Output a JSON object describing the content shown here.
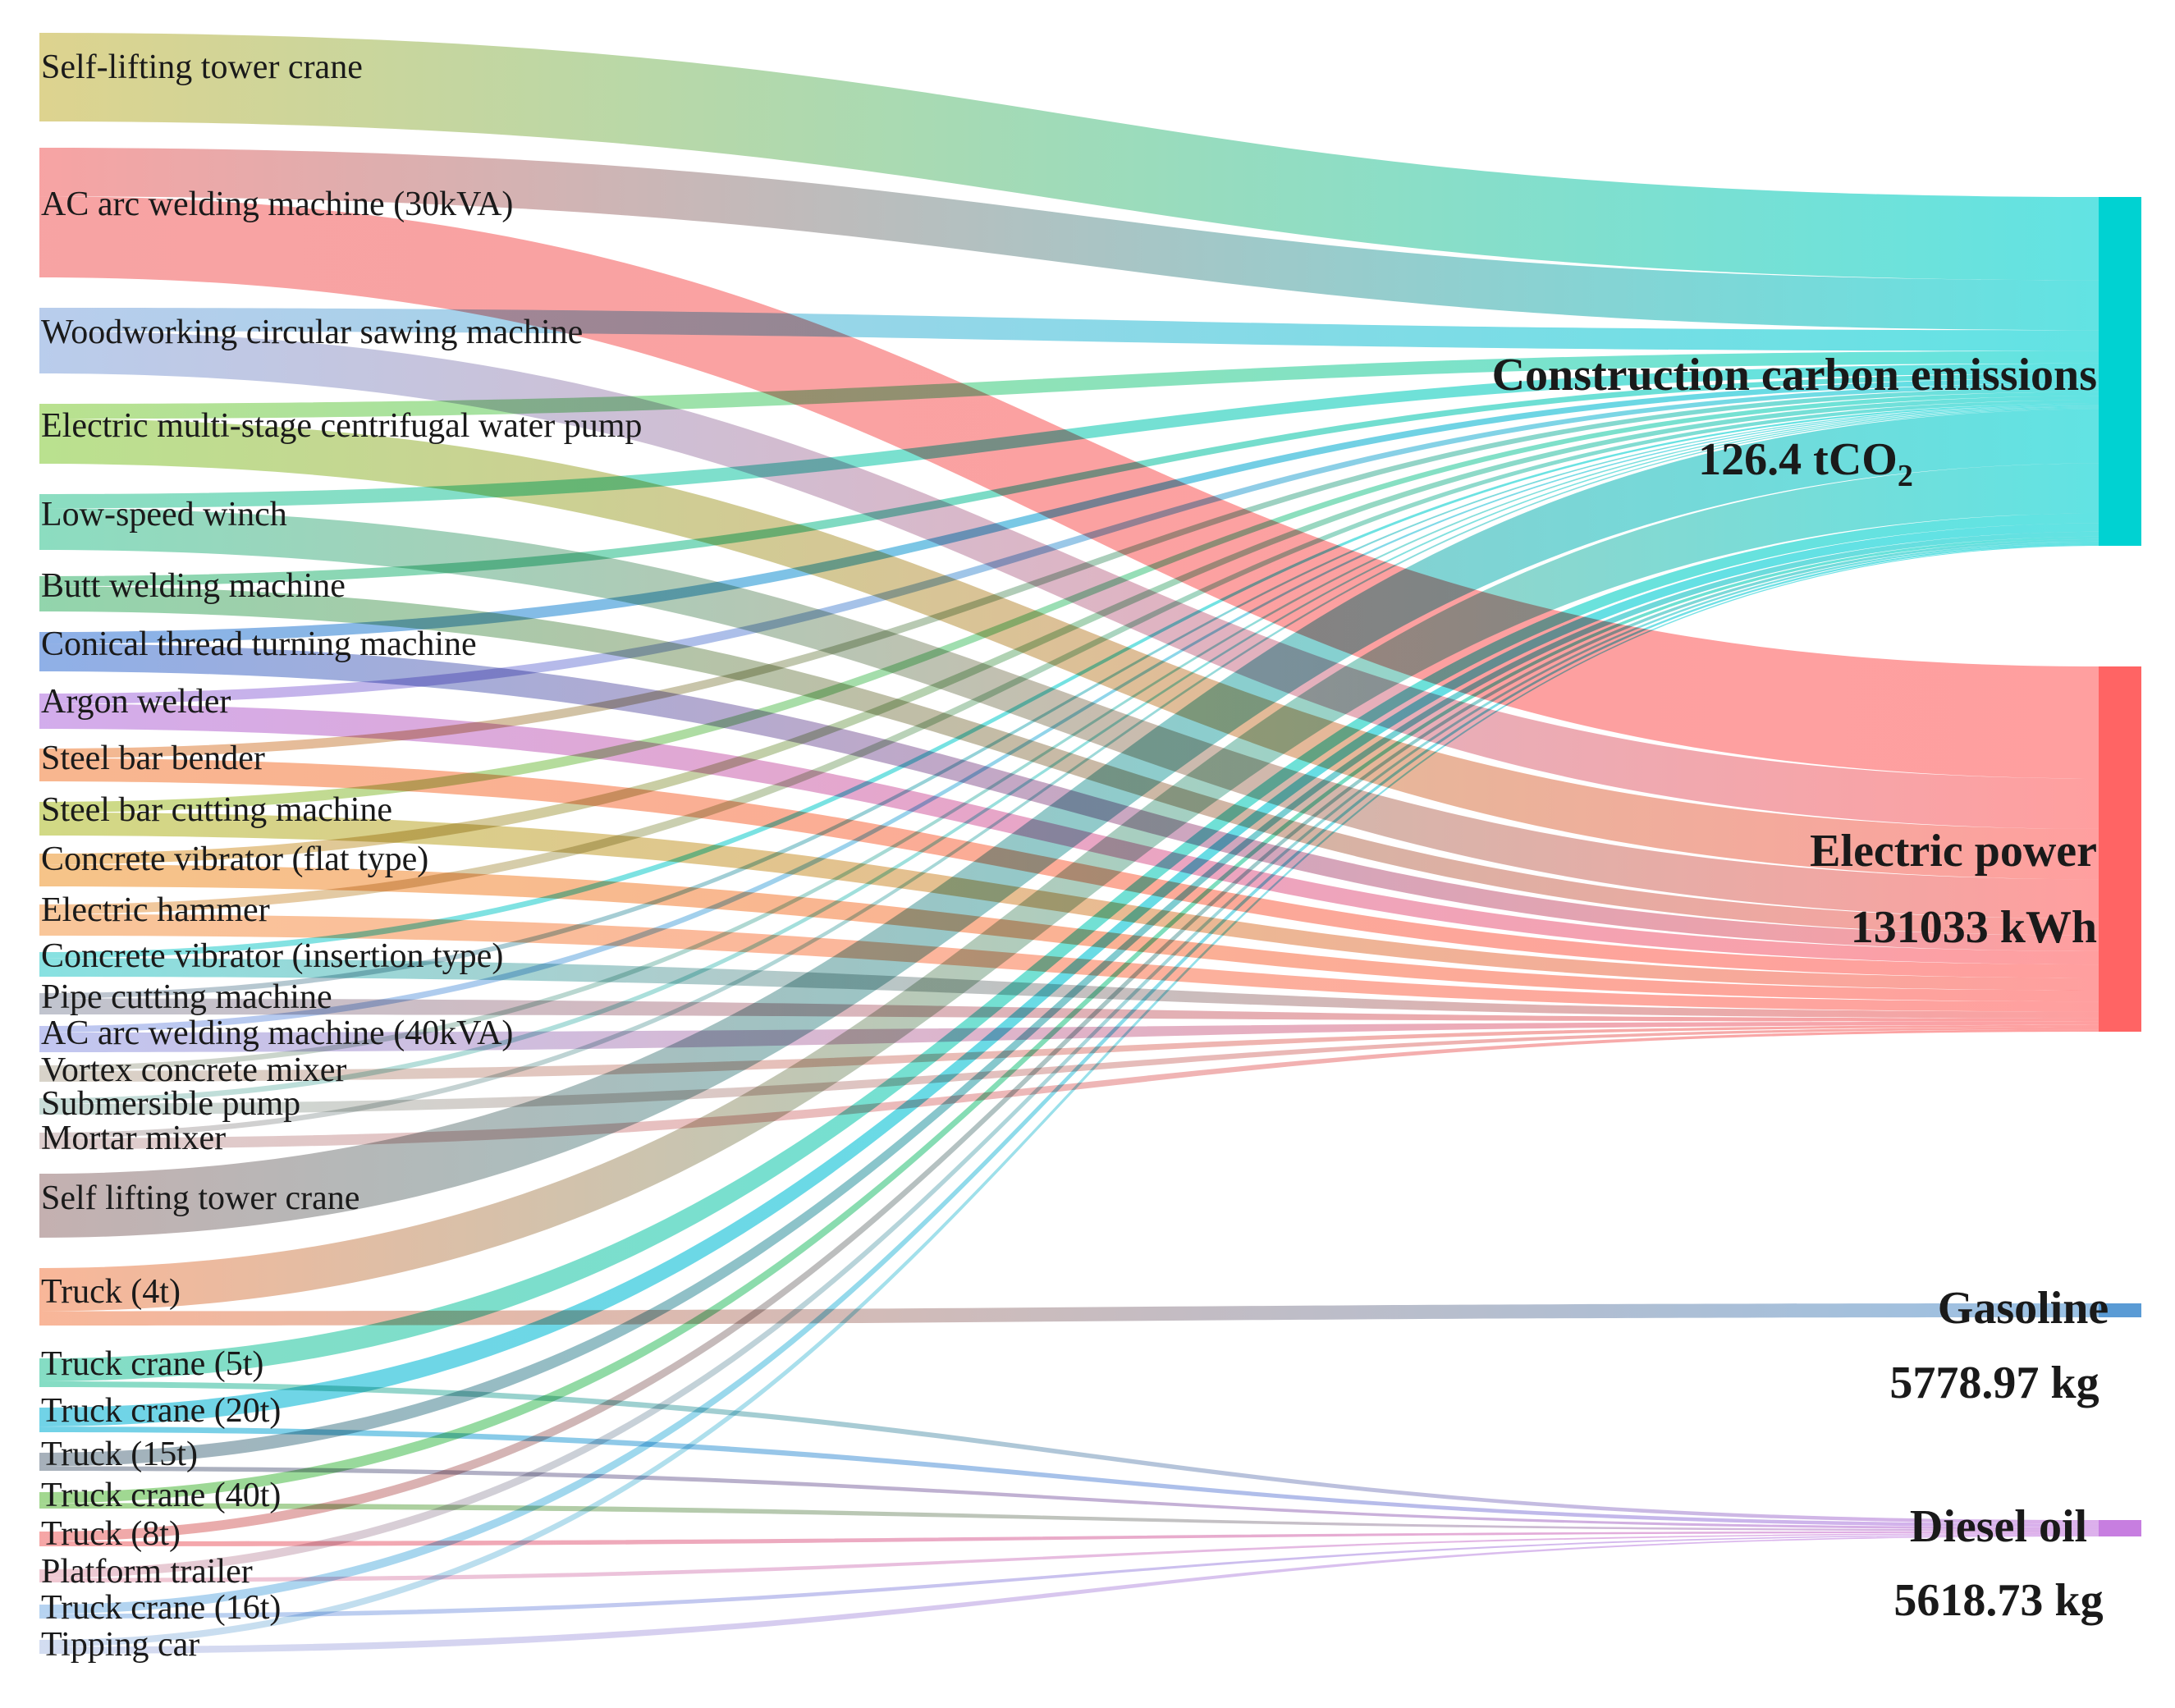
{
  "chart_data": {
    "type": "sankey",
    "sources": [
      {
        "label": "Self-lifting tower crane",
        "color": "#c9b84a",
        "links": [
          [
            "construction",
            1.0
          ]
        ]
      },
      {
        "label": "AC arc welding machine (30kVA)",
        "color": "#f26b6b",
        "links": [
          [
            "construction",
            0.6
          ],
          [
            "electric",
            1.0
          ]
        ]
      },
      {
        "label": "Woodworking circular sawing machine",
        "color": "#8eaee0",
        "links": [
          [
            "construction",
            0.25
          ],
          [
            "electric",
            0.45
          ]
        ]
      },
      {
        "label": "Electric multi-stage centrifugal water pump",
        "color": "#8fcf4a",
        "links": [
          [
            "construction",
            0.15
          ],
          [
            "electric",
            0.45
          ]
        ]
      },
      {
        "label": "Low-speed winch",
        "color": "#45c89a",
        "links": [
          [
            "construction",
            0.12
          ],
          [
            "electric",
            0.35
          ]
        ]
      },
      {
        "label": "Butt welding machine",
        "color": "#4fbb7a",
        "links": [
          [
            "construction",
            0.06
          ],
          [
            "electric",
            0.15
          ]
        ]
      },
      {
        "label": "Conical thread turning machine",
        "color": "#4a7fd8",
        "links": [
          [
            "construction",
            0.06
          ],
          [
            "electric",
            0.14
          ]
        ]
      },
      {
        "label": "Argon welder",
        "color": "#b77ae0",
        "links": [
          [
            "construction",
            0.05
          ],
          [
            "electric",
            0.12
          ]
        ]
      },
      {
        "label": "Steel bar bender",
        "color": "#f48a4a",
        "links": [
          [
            "construction",
            0.05
          ],
          [
            "electric",
            0.12
          ]
        ]
      },
      {
        "label": "Steel bar cutting machine",
        "color": "#b5c23a",
        "links": [
          [
            "construction",
            0.05
          ],
          [
            "electric",
            0.11
          ]
        ]
      },
      {
        "label": "Concrete vibrator (flat type)",
        "color": "#f0a040",
        "links": [
          [
            "construction",
            0.05
          ],
          [
            "electric",
            0.1
          ]
        ]
      },
      {
        "label": "Electric hammer",
        "color": "#f5a35a",
        "links": [
          [
            "construction",
            0.04
          ],
          [
            "electric",
            0.09
          ]
        ]
      },
      {
        "label": "Concrete vibrator (insertion type)",
        "color": "#3fcfcf",
        "links": [
          [
            "construction",
            0.02
          ],
          [
            "electric",
            0.06
          ]
        ]
      },
      {
        "label": "Pipe cutting machine",
        "color": "#9aa0b0",
        "links": [
          [
            "construction",
            0.01
          ],
          [
            "electric",
            0.03
          ]
        ]
      },
      {
        "label": "AC arc welding machine (40kVA)",
        "color": "#9ba4e8",
        "links": [
          [
            "construction",
            0.01
          ],
          [
            "electric",
            0.03
          ]
        ]
      },
      {
        "label": "Vortex concrete mixer",
        "color": "#c0b8a8",
        "links": [
          [
            "construction",
            0.01
          ],
          [
            "electric",
            0.02
          ]
        ]
      },
      {
        "label": "Submersible pump",
        "color": "#a8c8c0",
        "links": [
          [
            "construction",
            0.01
          ],
          [
            "electric",
            0.02
          ]
        ]
      },
      {
        "label": "Mortar mixer",
        "color": "#c8b0b0",
        "links": [
          [
            "construction",
            0.01
          ],
          [
            "electric",
            0.02
          ]
        ]
      },
      {
        "label": "Self lifting tower crane",
        "color": "#a08080",
        "links": [
          [
            "construction",
            0.65
          ]
        ]
      },
      {
        "label": "Truck (4t)",
        "color": "#f58a5a",
        "links": [
          [
            "construction",
            0.6
          ],
          [
            "gasoline",
            0.2
          ]
        ]
      },
      {
        "label": "Truck crane (5t)",
        "color": "#3ac8a0",
        "links": [
          [
            "construction",
            0.12
          ],
          [
            "diesel",
            0.03
          ]
        ]
      },
      {
        "label": "Truck crane (20t)",
        "color": "#1ab8d8",
        "links": [
          [
            "construction",
            0.1
          ],
          [
            "diesel",
            0.03
          ]
        ]
      },
      {
        "label": "Truck (15t)",
        "color": "#708090",
        "links": [
          [
            "construction",
            0.06
          ],
          [
            "diesel",
            0.02
          ]
        ]
      },
      {
        "label": "Truck crane (40t)",
        "color": "#6abf4a",
        "links": [
          [
            "construction",
            0.03
          ],
          [
            "diesel",
            0.015
          ]
        ]
      },
      {
        "label": "Truck (8t)",
        "color": "#f07070",
        "links": [
          [
            "construction",
            0.03
          ],
          [
            "diesel",
            0.015
          ]
        ]
      },
      {
        "label": "Platform trailer",
        "color": "#e8a8b8",
        "links": [
          [
            "construction",
            0.02
          ],
          [
            "diesel",
            0.01
          ]
        ]
      },
      {
        "label": "Truck crane (16t)",
        "color": "#8ab8e8",
        "links": [
          [
            "construction",
            0.02
          ],
          [
            "diesel",
            0.01
          ]
        ]
      },
      {
        "label": "Tipping car",
        "color": "#b8c8e8",
        "links": [
          [
            "construction",
            0.01
          ],
          [
            "diesel",
            0.01
          ]
        ]
      }
    ],
    "targets": [
      {
        "id": "construction",
        "label": "Construction carbon emissions",
        "value_text": "126.4 tCO",
        "value_sub": "2",
        "color": "#00d2d2"
      },
      {
        "id": "electric",
        "label": "Electric power",
        "value_text": "131033 kWh",
        "color": "#ff6464"
      },
      {
        "id": "gasoline",
        "label": "Gasoline",
        "value_text": "5778.97 kg",
        "color": "#5a9bd5"
      },
      {
        "id": "diesel",
        "label": "Diesel oil",
        "value_text": "5618.73 kg",
        "color": "#c77ee0"
      }
    ]
  }
}
